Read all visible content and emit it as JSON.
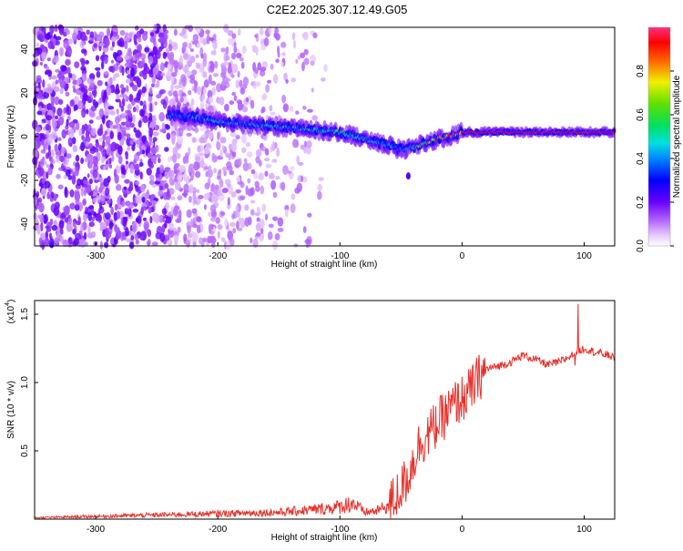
{
  "figure_title": "C2E2.2025.307.12.49.G05",
  "colors": {
    "snr_line": "#e8302a",
    "axis": "#000000",
    "background": "#ffffff"
  },
  "chart_data": [
    {
      "type": "heatmap",
      "title": "C2E2.2025.307.12.49.G05",
      "xlabel": "Height of straight line (km)",
      "ylabel": "Frequency (Hz)",
      "xlim": [
        -350,
        125
      ],
      "ylim": [
        -50,
        50
      ],
      "x_ticks": [
        -300,
        -200,
        -100,
        0,
        100
      ],
      "x_tick_labels": [
        "-300",
        "-200",
        "-100",
        "0",
        "100"
      ],
      "y_ticks": [
        -40,
        -20,
        0,
        20,
        40
      ],
      "y_tick_labels": [
        "-40",
        "-20",
        "0",
        "20",
        "40"
      ],
      "colorbar": {
        "label": "Normalized spectral amplitude",
        "range": [
          0,
          1
        ],
        "ticks": [
          0.0,
          0.2,
          0.4,
          0.6,
          0.8
        ],
        "tick_labels": [
          "0.0",
          "0.2",
          "0.4",
          "0.6",
          "0.8"
        ],
        "colormap": "rainbow (violet-blue-cyan-green-yellow-red-magenta)"
      },
      "ridge": {
        "description": "dominant frequency track vs height",
        "x": [
          -240,
          -220,
          -200,
          -180,
          -160,
          -140,
          -120,
          -100,
          -80,
          -60,
          -50,
          -40,
          -30,
          -20,
          -10,
          0,
          20,
          40,
          60,
          80,
          100,
          125
        ],
        "y": [
          10,
          9,
          7,
          6,
          5,
          4,
          3,
          2,
          -1,
          -4,
          -6,
          -5,
          -3,
          -1,
          0,
          2,
          2,
          2,
          2,
          2,
          2,
          2
        ],
        "amplitude": [
          0.35,
          0.4,
          0.45,
          0.45,
          0.45,
          0.45,
          0.5,
          0.5,
          0.5,
          0.4,
          0.35,
          0.6,
          0.7,
          0.8,
          0.85,
          0.9,
          0.95,
          0.95,
          0.95,
          0.95,
          0.9,
          0.95
        ]
      }
    },
    {
      "type": "line",
      "xlabel": "Height of straight line (km)",
      "ylabel": "SNR (10 * v/v)",
      "yscale_label": "(x10",
      "yscale_exponent": "4",
      "xlim": [
        -350,
        125
      ],
      "ylim": [
        0,
        1.6
      ],
      "x_ticks": [
        -300,
        -200,
        -100,
        0,
        100
      ],
      "x_tick_labels": [
        "-300",
        "-200",
        "-100",
        "0",
        "100"
      ],
      "y_ticks": [
        0.5,
        1.0,
        1.5
      ],
      "y_tick_labels": [
        "0.5",
        "1.0",
        "1.5"
      ],
      "series": [
        {
          "name": "SNR",
          "color": "#e8302a",
          "x": [
            -350,
            -300,
            -250,
            -200,
            -150,
            -120,
            -100,
            -90,
            -80,
            -70,
            -60,
            -55,
            -50,
            -45,
            -40,
            -35,
            -30,
            -25,
            -20,
            -15,
            -10,
            -5,
            0,
            5,
            10,
            15,
            20,
            30,
            40,
            50,
            60,
            70,
            80,
            90,
            95,
            100,
            110,
            120,
            125
          ],
          "y": [
            0.01,
            0.02,
            0.03,
            0.04,
            0.05,
            0.07,
            0.09,
            0.12,
            0.05,
            0.06,
            0.1,
            0.15,
            0.22,
            0.3,
            0.42,
            0.55,
            0.6,
            0.65,
            0.7,
            0.75,
            0.8,
            0.85,
            0.88,
            0.92,
            0.98,
            1.05,
            1.1,
            1.12,
            1.15,
            1.2,
            1.17,
            1.13,
            1.15,
            1.2,
            1.23,
            1.25,
            1.22,
            1.2,
            1.18
          ]
        }
      ]
    }
  ]
}
